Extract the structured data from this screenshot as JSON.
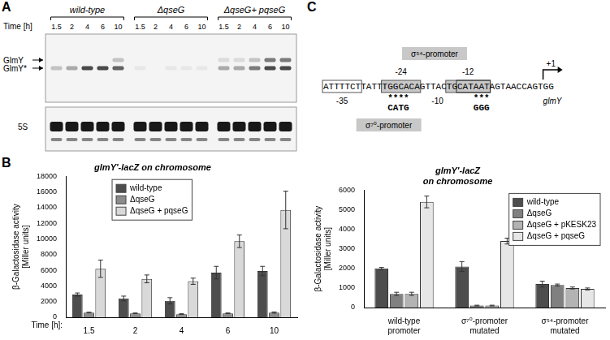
{
  "panel_labels": [
    "A",
    "B",
    "C"
  ],
  "blot": {
    "time_label": "Time [h]",
    "band_labels": [
      "GlmY",
      "GlmY*"
    ],
    "loading_label": "5S",
    "groups": [
      {
        "label": "wild-type",
        "times": [
          1.5,
          2,
          4,
          6,
          10
        ],
        "signal": {
          "GlmY": [
            0,
            0,
            0,
            0,
            0.2
          ],
          "GlmY*": [
            0.2,
            0.3,
            0.7,
            0.7,
            0.6
          ],
          "5S": [
            0.9,
            0.9,
            0.9,
            0.9,
            0.9
          ]
        }
      },
      {
        "label": "ΔqseG",
        "times": [
          1.5,
          2,
          4,
          6,
          10
        ],
        "signal": {
          "GlmY": [
            0,
            0,
            0,
            0,
            0
          ],
          "GlmY*": [
            0.05,
            0,
            0.05,
            0.05,
            0.05
          ],
          "5S": [
            0.9,
            0.9,
            0.9,
            0.9,
            0.9
          ]
        }
      },
      {
        "label": "ΔqseG+ pqseG",
        "times": [
          1.5,
          2,
          4,
          6,
          10
        ],
        "signal": {
          "GlmY": [
            0.1,
            0.1,
            0.2,
            0.5,
            0.5
          ],
          "GlmY*": [
            0.3,
            0.3,
            0.5,
            0.7,
            0.7
          ],
          "5S": [
            0.9,
            0.9,
            0.9,
            0.9,
            0.9
          ]
        }
      }
    ]
  },
  "promoter": {
    "segments": [
      "ATTTTCT",
      "TATT",
      "TGGCACA",
      "GTTAC",
      "TGCATAAT",
      "AGTAACCAGTGG"
    ],
    "sigma54": "σ⁵⁴-promoter",
    "sigma70": "σ⁷⁰-promoter",
    "minus24": "-24",
    "minus12": "-12",
    "minus35": "-35",
    "minus10": "-10",
    "plus1": "+1",
    "gene": "glmY",
    "mutation_24": {
      "stars": "****",
      "bases": "CATG"
    },
    "mutation_10": {
      "stars": "***",
      "bases": "GGG"
    }
  },
  "chart_data": [
    {
      "type": "bar",
      "title": "glmY'-lacZ on chromosome",
      "ylabel": "β-Galactosidase activity [Miller units]",
      "xlabel": "Time [h]:",
      "categories": [
        "1.5",
        "2",
        "4",
        "6",
        "10"
      ],
      "series": [
        {
          "name": "wild-type",
          "color": "#4d4d4d",
          "values": [
            2900,
            2400,
            2100,
            5700,
            5900
          ],
          "errors": [
            200,
            300,
            400,
            800,
            600
          ]
        },
        {
          "name": "ΔqseG",
          "color": "#8c8c8c",
          "values": [
            600,
            500,
            400,
            500,
            600
          ],
          "errors": [
            50,
            50,
            50,
            50,
            80
          ]
        },
        {
          "name": "ΔqseG + pqseG",
          "color": "#d9d9d9",
          "values": [
            6200,
            4900,
            4600,
            9700,
            13700
          ],
          "errors": [
            1100,
            500,
            400,
            800,
            2400
          ]
        }
      ],
      "ylim": [
        0,
        18000
      ],
      "yticks": [
        0,
        2000,
        4000,
        6000,
        8000,
        10000,
        12000,
        14000,
        16000,
        18000
      ],
      "grid": false,
      "legend": "upper left"
    },
    {
      "type": "bar",
      "title": "glmY'-lacZ on chromosome",
      "ylabel": "β-Galactosidase activity [Miller units]",
      "categories": [
        "wild-type promoter",
        "σ⁷⁰-promoter mutated",
        "σ⁵⁴-promoter mutated"
      ],
      "series": [
        {
          "name": "wild-type",
          "color": "#4d4d4d",
          "values": [
            2000,
            2100,
            1200
          ],
          "errors": [
            50,
            250,
            150
          ]
        },
        {
          "name": "ΔqseG",
          "color": "#808080",
          "values": [
            700,
            100,
            1150
          ],
          "errors": [
            80,
            20,
            50
          ]
        },
        {
          "name": "ΔqseG + pKESK23",
          "color": "#b3b3b3",
          "values": [
            700,
            100,
            1000
          ],
          "errors": [
            80,
            20,
            50
          ]
        },
        {
          "name": "ΔqseG + pqseG",
          "color": "#e6e6e6",
          "values": [
            5400,
            3400,
            950
          ],
          "errors": [
            300,
            150,
            50
          ]
        }
      ],
      "ylim": [
        0,
        6000
      ],
      "yticks": [
        0,
        1000,
        2000,
        3000,
        4000,
        5000,
        6000
      ],
      "grid": false,
      "legend": "upper right"
    }
  ]
}
